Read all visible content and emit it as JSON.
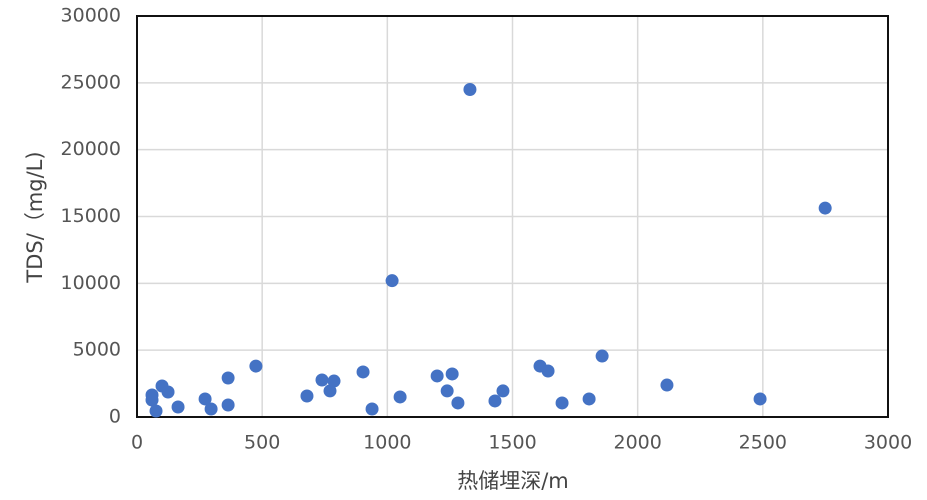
{
  "chart_data": {
    "type": "scatter",
    "x_label": "热储埋深/m",
    "y_label": "TDS/（mg/L)",
    "x": [
      60,
      60,
      76,
      100,
      124,
      164,
      272,
      296,
      364,
      364,
      475,
      679,
      739,
      771,
      787,
      903,
      939,
      1019,
      1051,
      1199,
      1239,
      1259,
      1282,
      1330,
      1430,
      1462,
      1610,
      1642,
      1698,
      1806,
      1858,
      2117,
      2489,
      2749
    ],
    "values": [
      1650,
      1270,
      450,
      2320,
      1870,
      750,
      1350,
      600,
      2920,
      900,
      3810,
      1570,
      2770,
      1950,
      2690,
      3370,
      600,
      10200,
      1500,
      3070,
      1950,
      3220,
      1050,
      24500,
      1200,
      1950,
      3810,
      3440,
      1050,
      1350,
      4560,
      2390,
      1350,
      15630
    ],
    "color": "#4472c4",
    "xlim": [
      0,
      3000
    ],
    "xticks": [
      0,
      500,
      1000,
      1500,
      2000,
      2500,
      3000
    ],
    "ylim": [
      0,
      30000
    ],
    "yticks": [
      0,
      5000,
      10000,
      15000,
      20000,
      25000,
      30000
    ],
    "grid": true
  }
}
